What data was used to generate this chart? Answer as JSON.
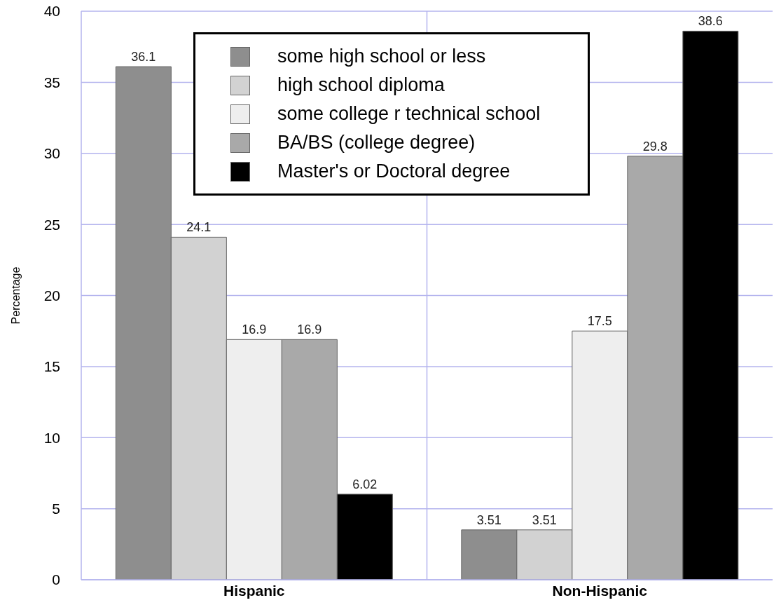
{
  "chart_data": {
    "type": "bar",
    "categories": [
      "Hispanic",
      "Non-Hispanic"
    ],
    "ylabel": "Percentage",
    "series": [
      {
        "name": "some high school or less",
        "color": "#8e8e8e",
        "values": [
          36.1,
          3.51
        ]
      },
      {
        "name": "high school diploma",
        "color": "#d2d2d2",
        "values": [
          24.1,
          3.51
        ]
      },
      {
        "name": "some college r technical school",
        "color": "#eeeeee",
        "values": [
          16.9,
          17.5
        ]
      },
      {
        "name": "BA/BS (college degree)",
        "color": "#a9a9a9",
        "values": [
          16.9,
          29.8
        ]
      },
      {
        "name": "Master's or Doctoral degree",
        "color": "#000000",
        "values": [
          6.02,
          38.6
        ]
      }
    ],
    "ylim": [
      0,
      40
    ],
    "yticks": [
      0,
      5,
      10,
      15,
      20,
      25,
      30,
      35,
      40
    ],
    "grid": true,
    "legend": "top",
    "data_labels": true
  }
}
